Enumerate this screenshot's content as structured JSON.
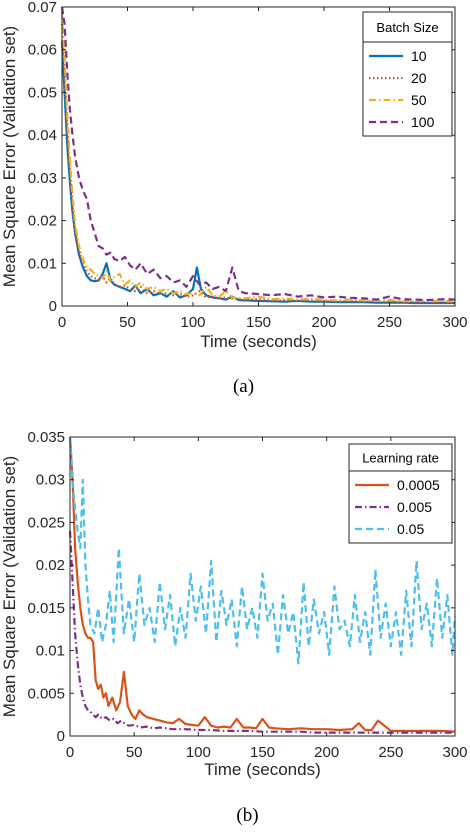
{
  "chart_data": [
    {
      "type": "line",
      "caption": "(a)",
      "xlabel": "Time (seconds)",
      "ylabel": "Mean Square Error (Validation set)",
      "xlim": [
        0,
        300
      ],
      "ylim": [
        0,
        0.07
      ],
      "xticks": [
        0,
        50,
        100,
        150,
        200,
        250,
        300
      ],
      "yticks": [
        0,
        0.01,
        0.02,
        0.03,
        0.04,
        0.05,
        0.06,
        0.07
      ],
      "xtick_labels": [
        "0",
        "50",
        "100",
        "150",
        "200",
        "250",
        "300"
      ],
      "ytick_labels": [
        "0",
        "0.01",
        "0.02",
        "0.03",
        "0.04",
        "0.05",
        "0.06",
        "0.07"
      ],
      "grid": false,
      "legend": {
        "title": "Batch Size",
        "placement": "top-right"
      },
      "series": [
        {
          "name": "10",
          "color": "#0072BD",
          "dash": "solid",
          "x": [
            0,
            2,
            4,
            6,
            8,
            10,
            13,
            16,
            19,
            22,
            25,
            28,
            31,
            34,
            37,
            40,
            44,
            48,
            52,
            56,
            60,
            65,
            70,
            75,
            80,
            85,
            90,
            95,
            100,
            103,
            106,
            110,
            115,
            120,
            125,
            130,
            135,
            140,
            150,
            160,
            170,
            180,
            190,
            200,
            210,
            220,
            230,
            240,
            250,
            260,
            270,
            280,
            290,
            300
          ],
          "y": [
            0.062,
            0.05,
            0.038,
            0.029,
            0.022,
            0.017,
            0.012,
            0.009,
            0.007,
            0.006,
            0.0058,
            0.006,
            0.0075,
            0.01,
            0.006,
            0.005,
            0.0045,
            0.004,
            0.0035,
            0.0048,
            0.003,
            0.004,
            0.0025,
            0.003,
            0.0022,
            0.0035,
            0.002,
            0.0025,
            0.004,
            0.009,
            0.004,
            0.0025,
            0.002,
            0.0018,
            0.0015,
            0.0022,
            0.0014,
            0.0013,
            0.0012,
            0.0011,
            0.001,
            0.0012,
            0.001,
            0.001,
            0.0009,
            0.0009,
            0.0009,
            0.0008,
            0.0008,
            0.0008,
            0.0007,
            0.0007,
            0.0007,
            0.0007
          ]
        },
        {
          "name": "20",
          "color": "#D95319",
          "dash": "dotted",
          "x": [
            0,
            2,
            4,
            6,
            8,
            10,
            13,
            16,
            19,
            22,
            25,
            28,
            31,
            34,
            37,
            40,
            44,
            48,
            52,
            56,
            60,
            65,
            70,
            75,
            80,
            85,
            90,
            95,
            100,
            105,
            110,
            115,
            120,
            125,
            130,
            140,
            150,
            160,
            170,
            180,
            190,
            200,
            210,
            220,
            230,
            240,
            250,
            260,
            270,
            280,
            290,
            300
          ],
          "y": [
            0.066,
            0.055,
            0.042,
            0.032,
            0.024,
            0.018,
            0.013,
            0.01,
            0.008,
            0.007,
            0.0065,
            0.0062,
            0.007,
            0.0055,
            0.0065,
            0.005,
            0.0045,
            0.0048,
            0.004,
            0.0035,
            0.0045,
            0.003,
            0.0035,
            0.0028,
            0.003,
            0.0025,
            0.0028,
            0.0022,
            0.0025,
            0.0035,
            0.002,
            0.0022,
            0.0018,
            0.002,
            0.0017,
            0.0015,
            0.0016,
            0.0013,
            0.0014,
            0.0012,
            0.0013,
            0.0012,
            0.0011,
            0.0012,
            0.001,
            0.0011,
            0.001,
            0.001,
            0.0009,
            0.001,
            0.0009,
            0.0009
          ]
        },
        {
          "name": "50",
          "color": "#EDB120",
          "dash": "dashdot",
          "x": [
            0,
            2,
            4,
            6,
            8,
            10,
            13,
            16,
            19,
            22,
            25,
            28,
            31,
            34,
            37,
            40,
            44,
            48,
            52,
            56,
            60,
            65,
            70,
            75,
            80,
            85,
            90,
            95,
            100,
            105,
            110,
            115,
            120,
            125,
            130,
            140,
            150,
            160,
            170,
            180,
            190,
            200,
            210,
            220,
            230,
            240,
            250,
            260,
            270,
            280,
            290,
            300
          ],
          "y": [
            0.069,
            0.058,
            0.045,
            0.034,
            0.026,
            0.019,
            0.014,
            0.011,
            0.009,
            0.0085,
            0.0075,
            0.007,
            0.0065,
            0.0082,
            0.006,
            0.0068,
            0.0075,
            0.005,
            0.006,
            0.0045,
            0.0055,
            0.004,
            0.0045,
            0.0035,
            0.004,
            0.003,
            0.0035,
            0.0028,
            0.003,
            0.0025,
            0.0045,
            0.0025,
            0.0022,
            0.0035,
            0.002,
            0.0018,
            0.0022,
            0.0016,
            0.0018,
            0.0015,
            0.0017,
            0.0014,
            0.0013,
            0.0015,
            0.0013,
            0.0012,
            0.0014,
            0.0011,
            0.0012,
            0.0011,
            0.0012,
            0.001
          ]
        },
        {
          "name": "100",
          "color": "#7E2F8E",
          "dash": "dashed",
          "x": [
            0,
            2,
            4,
            6,
            8,
            10,
            13,
            16,
            19,
            22,
            25,
            28,
            31,
            34,
            37,
            40,
            44,
            48,
            52,
            56,
            60,
            65,
            70,
            75,
            80,
            85,
            90,
            95,
            100,
            105,
            110,
            115,
            120,
            125,
            130,
            135,
            140,
            150,
            160,
            170,
            180,
            190,
            200,
            210,
            220,
            230,
            240,
            250,
            260,
            270,
            280,
            290,
            300
          ],
          "y": [
            0.07,
            0.066,
            0.055,
            0.046,
            0.04,
            0.035,
            0.03,
            0.027,
            0.025,
            0.02,
            0.017,
            0.014,
            0.0135,
            0.012,
            0.0125,
            0.011,
            0.0105,
            0.0115,
            0.0095,
            0.0085,
            0.01,
            0.0075,
            0.0085,
            0.0065,
            0.007,
            0.0055,
            0.006,
            0.0045,
            0.007,
            0.005,
            0.0055,
            0.004,
            0.0045,
            0.0035,
            0.009,
            0.0035,
            0.003,
            0.0028,
            0.0025,
            0.0028,
            0.0022,
            0.0025,
            0.002,
            0.0022,
            0.0019,
            0.0018,
            0.0015,
            0.0022,
            0.0016,
            0.0015,
            0.0014,
            0.0016,
            0.0015
          ]
        }
      ]
    },
    {
      "type": "line",
      "caption": "(b)",
      "xlabel": "Time (seconds)",
      "ylabel": "Mean Square Error (Validation set)",
      "xlim": [
        0,
        300
      ],
      "ylim": [
        0,
        0.035
      ],
      "xticks": [
        0,
        50,
        100,
        150,
        200,
        250,
        300
      ],
      "yticks": [
        0,
        0.005,
        0.01,
        0.015,
        0.02,
        0.025,
        0.03,
        0.035
      ],
      "xtick_labels": [
        "0",
        "50",
        "100",
        "150",
        "200",
        "250",
        "300"
      ],
      "ytick_labels": [
        "0",
        "0.005",
        "0.01",
        "0.015",
        "0.02",
        "0.025",
        "0.03",
        "0.035"
      ],
      "grid": false,
      "legend": {
        "title": "Learning rate",
        "placement": "top-right"
      },
      "series": [
        {
          "name": "0.0005",
          "color": "#D95319",
          "dash": "solid",
          "x": [
            0,
            2,
            4,
            6,
            8,
            10,
            12,
            14,
            16,
            18,
            20,
            22,
            24,
            26,
            28,
            30,
            33,
            36,
            39,
            42,
            45,
            48,
            51,
            54,
            57,
            60,
            65,
            70,
            75,
            80,
            85,
            90,
            95,
            100,
            105,
            110,
            115,
            120,
            125,
            130,
            135,
            140,
            145,
            150,
            155,
            160,
            170,
            180,
            190,
            200,
            210,
            220,
            225,
            230,
            235,
            240,
            250,
            260,
            270,
            280,
            290,
            300
          ],
          "y": [
            0.035,
            0.03,
            0.022,
            0.018,
            0.015,
            0.013,
            0.012,
            0.0115,
            0.0115,
            0.011,
            0.0065,
            0.0055,
            0.006,
            0.0045,
            0.005,
            0.0035,
            0.0045,
            0.003,
            0.004,
            0.0075,
            0.0035,
            0.0025,
            0.002,
            0.003,
            0.0025,
            0.0022,
            0.002,
            0.0018,
            0.0016,
            0.0015,
            0.002,
            0.0014,
            0.0013,
            0.0012,
            0.0022,
            0.0012,
            0.001,
            0.0011,
            0.001,
            0.002,
            0.001,
            0.001,
            0.0009,
            0.002,
            0.001,
            0.0009,
            0.0008,
            0.0009,
            0.0008,
            0.0008,
            0.0007,
            0.0008,
            0.0015,
            0.0007,
            0.0007,
            0.0018,
            0.0006,
            0.0006,
            0.0006,
            0.0006,
            0.0006,
            0.0005
          ]
        },
        {
          "name": "0.005",
          "color": "#7E2F8E",
          "dash": "dashdot",
          "x": [
            0,
            2,
            4,
            6,
            8,
            10,
            12,
            14,
            16,
            18,
            20,
            22,
            25,
            28,
            31,
            34,
            37,
            40,
            43,
            46,
            50,
            55,
            60,
            65,
            70,
            75,
            80,
            90,
            100,
            110,
            120,
            130,
            140,
            150,
            160,
            170,
            180,
            190,
            200,
            210,
            220,
            230,
            240,
            250,
            260,
            270,
            280,
            290,
            300
          ],
          "y": [
            0.024,
            0.018,
            0.012,
            0.0085,
            0.006,
            0.0045,
            0.0035,
            0.003,
            0.0028,
            0.0025,
            0.0022,
            0.0025,
            0.002,
            0.0022,
            0.0018,
            0.002,
            0.0015,
            0.0018,
            0.0014,
            0.0012,
            0.0013,
            0.001,
            0.0011,
            0.0009,
            0.001,
            0.0009,
            0.0008,
            0.0008,
            0.0007,
            0.0007,
            0.0006,
            0.0006,
            0.0006,
            0.0005,
            0.0005,
            0.0005,
            0.0005,
            0.0004,
            0.0004,
            0.0004,
            0.0004,
            0.0004,
            0.0004,
            0.0004,
            0.0004,
            0.0004,
            0.0004,
            0.0004,
            0.0004
          ]
        },
        {
          "name": "0.05",
          "color": "#4DBEEE",
          "dash": "dashed",
          "x": [
            0,
            3,
            6,
            8,
            10,
            12,
            14,
            16,
            19,
            22,
            25,
            28,
            31,
            34,
            38,
            42,
            46,
            50,
            54,
            58,
            62,
            66,
            70,
            74,
            78,
            82,
            86,
            90,
            94,
            98,
            102,
            106,
            110,
            114,
            118,
            122,
            126,
            130,
            134,
            138,
            142,
            146,
            150,
            154,
            158,
            162,
            166,
            170,
            174,
            178,
            182,
            186,
            190,
            194,
            198,
            202,
            206,
            210,
            214,
            218,
            222,
            226,
            230,
            234,
            238,
            242,
            246,
            250,
            254,
            258,
            262,
            266,
            270,
            274,
            278,
            282,
            286,
            290,
            294,
            298,
            300
          ],
          "y": [
            0.035,
            0.028,
            0.024,
            0.022,
            0.03,
            0.02,
            0.016,
            0.013,
            0.012,
            0.015,
            0.011,
            0.013,
            0.017,
            0.011,
            0.022,
            0.012,
            0.016,
            0.011,
            0.019,
            0.013,
            0.015,
            0.011,
            0.018,
            0.0125,
            0.0165,
            0.0105,
            0.015,
            0.0115,
            0.019,
            0.0135,
            0.0175,
            0.012,
            0.0205,
            0.011,
            0.017,
            0.013,
            0.016,
            0.0105,
            0.0175,
            0.0125,
            0.015,
            0.0115,
            0.019,
            0.0135,
            0.0155,
            0.0095,
            0.0165,
            0.012,
            0.0145,
            0.0085,
            0.018,
            0.0105,
            0.016,
            0.012,
            0.0145,
            0.0095,
            0.0175,
            0.0125,
            0.0135,
            0.0105,
            0.0165,
            0.011,
            0.0145,
            0.0095,
            0.0195,
            0.0115,
            0.0155,
            0.0105,
            0.0145,
            0.0095,
            0.017,
            0.0105,
            0.0205,
            0.0125,
            0.0155,
            0.0105,
            0.0185,
            0.0115,
            0.0165,
            0.0095,
            0.014
          ]
        }
      ]
    }
  ]
}
